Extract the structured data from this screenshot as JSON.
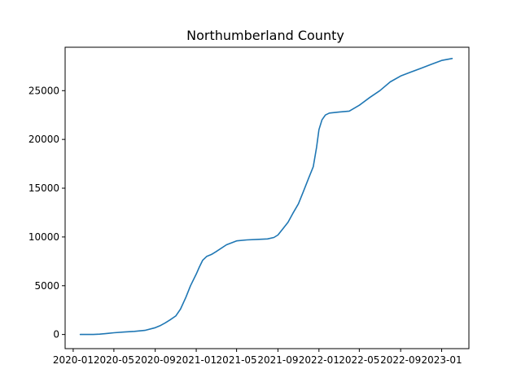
{
  "chart_data": {
    "type": "line",
    "title": "Northumberland County",
    "xlabel": "",
    "ylabel": "",
    "x_ticks": [
      "2020-01",
      "2020-05",
      "2020-09",
      "2021-01",
      "2021-05",
      "2021-09",
      "2022-01",
      "2022-05",
      "2022-09",
      "2023-01"
    ],
    "y_ticks": [
      0,
      5000,
      10000,
      15000,
      20000,
      25000
    ],
    "xlim": [
      "2019-12-08",
      "2023-03-23"
    ],
    "ylim": [
      -1450,
      29450
    ],
    "grid": false,
    "color": "#1f77b4",
    "series": [
      {
        "x": [
          "2020-01-22",
          "2020-03-01",
          "2020-03-20",
          "2020-04-15",
          "2020-05-01",
          "2020-06-01",
          "2020-07-01",
          "2020-08-01",
          "2020-09-01",
          "2020-09-15",
          "2020-10-01",
          "2020-10-15",
          "2020-11-01",
          "2020-11-15",
          "2020-12-01",
          "2020-12-15",
          "2021-01-01",
          "2021-01-10",
          "2021-01-20",
          "2021-02-01",
          "2021-02-15",
          "2021-03-01",
          "2021-04-01",
          "2021-05-01",
          "2021-06-01",
          "2021-07-01",
          "2021-08-01",
          "2021-08-20",
          "2021-09-01",
          "2021-09-15",
          "2021-10-01",
          "2021-10-15",
          "2021-11-01",
          "2021-11-15",
          "2021-12-01",
          "2021-12-15",
          "2021-12-25",
          "2022-01-01",
          "2022-01-10",
          "2022-01-20",
          "2022-02-01",
          "2022-02-15",
          "2022-03-01",
          "2022-04-01",
          "2022-05-01",
          "2022-06-01",
          "2022-07-01",
          "2022-08-01",
          "2022-09-01",
          "2022-10-01",
          "2022-11-01",
          "2022-12-01",
          "2023-01-01",
          "2023-02-01"
        ],
        "y": [
          0,
          0,
          40,
          120,
          180,
          250,
          320,
          420,
          700,
          900,
          1200,
          1500,
          1900,
          2600,
          3800,
          5000,
          6200,
          6900,
          7600,
          8000,
          8200,
          8500,
          9200,
          9600,
          9700,
          9750,
          9800,
          9950,
          10200,
          10800,
          11500,
          12400,
          13400,
          14600,
          16000,
          17200,
          19200,
          21000,
          22000,
          22500,
          22700,
          22750,
          22800,
          22900,
          23500,
          24300,
          25000,
          25900,
          26500,
          26900,
          27300,
          27700,
          28100,
          28300
        ]
      }
    ]
  }
}
